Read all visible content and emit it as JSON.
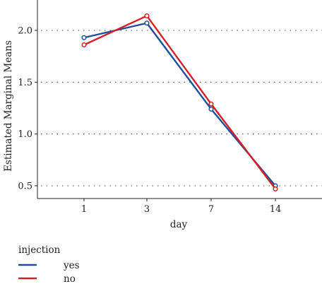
{
  "chart_data": {
    "type": "line",
    "xlabel": "day",
    "ylabel": "Estimated Marginal Means",
    "categories": [
      "1",
      "3",
      "7",
      "14"
    ],
    "ylim": [
      0.4,
      2.4
    ],
    "yticks": [
      "0.5",
      "1.0",
      "1.5",
      "2.0"
    ],
    "grid": "horizontal-dotted",
    "legend_position": "bottom-left",
    "legend_title": "injection",
    "series": [
      {
        "name": "yes",
        "color": "#1f4e9c",
        "values": [
          1.93,
          2.07,
          1.24,
          0.5
        ]
      },
      {
        "name": "no",
        "color": "#d42027",
        "values": [
          1.86,
          2.14,
          1.29,
          0.47
        ]
      }
    ]
  }
}
